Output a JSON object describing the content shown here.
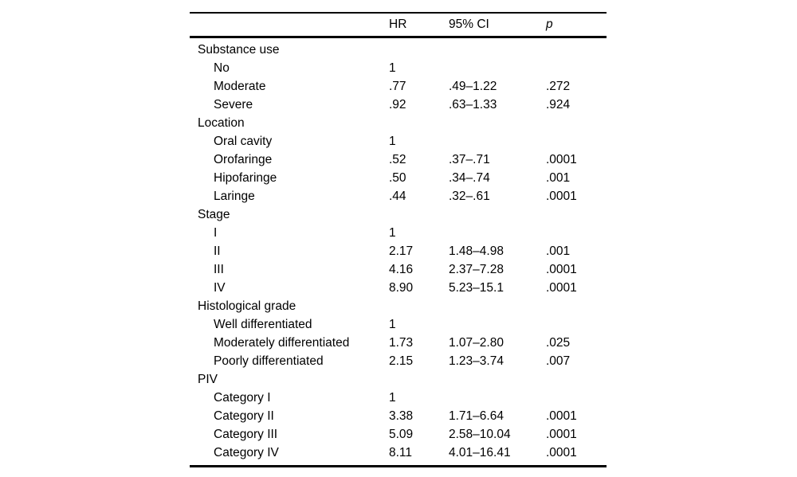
{
  "table": {
    "description": "Cox regression results table with hazard ratios, confidence intervals and p values",
    "header": {
      "label": "",
      "hr": "HR",
      "ci": "95% CI",
      "p": "p"
    },
    "rows": [
      {
        "label": "Substance use",
        "indent": false,
        "hr": "",
        "ci": "",
        "p": ""
      },
      {
        "label": "No",
        "indent": true,
        "hr": "1",
        "ci": "",
        "p": ""
      },
      {
        "label": "Moderate",
        "indent": true,
        "hr": ".77",
        "ci": ".49–1.22",
        "p": ".272"
      },
      {
        "label": "Severe",
        "indent": true,
        "hr": ".92",
        "ci": ".63–1.33",
        "p": ".924"
      },
      {
        "label": "Location",
        "indent": false,
        "hr": "",
        "ci": "",
        "p": ""
      },
      {
        "label": "Oral cavity",
        "indent": true,
        "hr": "1",
        "ci": "",
        "p": ""
      },
      {
        "label": "Orofaringe",
        "indent": true,
        "hr": ".52",
        "ci": ".37–.71",
        "p": ".0001"
      },
      {
        "label": "Hipofaringe",
        "indent": true,
        "hr": ".50",
        "ci": ".34–.74",
        "p": ".001"
      },
      {
        "label": "Laringe",
        "indent": true,
        "hr": ".44",
        "ci": ".32–.61",
        "p": ".0001"
      },
      {
        "label": "Stage",
        "indent": false,
        "hr": "",
        "ci": "",
        "p": ""
      },
      {
        "label": "I",
        "indent": true,
        "hr": "1",
        "ci": "",
        "p": ""
      },
      {
        "label": "II",
        "indent": true,
        "hr": "2.17",
        "ci": "1.48–4.98",
        "p": ".001"
      },
      {
        "label": "III",
        "indent": true,
        "hr": "4.16",
        "ci": "2.37–7.28",
        "p": ".0001"
      },
      {
        "label": "IV",
        "indent": true,
        "hr": "8.90",
        "ci": "5.23–15.1",
        "p": ".0001"
      },
      {
        "label": "Histological grade",
        "indent": false,
        "hr": "",
        "ci": "",
        "p": ""
      },
      {
        "label": "Well differentiated",
        "indent": true,
        "hr": "1",
        "ci": "",
        "p": ""
      },
      {
        "label": "Moderately differentiated",
        "indent": true,
        "hr": "1.73",
        "ci": "1.07–2.80",
        "p": ".025"
      },
      {
        "label": "Poorly differentiated",
        "indent": true,
        "hr": "2.15",
        "ci": "1.23–3.74",
        "p": ".007"
      },
      {
        "label": "PIV",
        "indent": false,
        "hr": "",
        "ci": "",
        "p": ""
      },
      {
        "label": "Category I",
        "indent": true,
        "hr": "1",
        "ci": "",
        "p": ""
      },
      {
        "label": "Category II",
        "indent": true,
        "hr": "3.38",
        "ci": "1.71–6.64",
        "p": ".0001"
      },
      {
        "label": "Category III",
        "indent": true,
        "hr": "5.09",
        "ci": "2.58–10.04",
        "p": ".0001"
      },
      {
        "label": "Category IV",
        "indent": true,
        "hr": "8.11",
        "ci": "4.01–16.41",
        "p": ".0001"
      }
    ]
  },
  "colors": {
    "background": "#ffffff",
    "text": "#000000",
    "rule": "#000000"
  }
}
